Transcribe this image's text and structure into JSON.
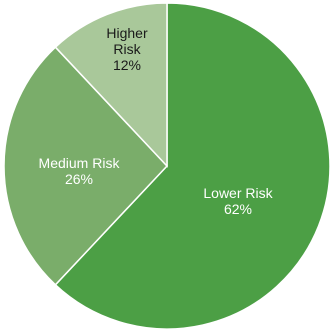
{
  "chart_data": {
    "type": "pie",
    "title": "",
    "slices": [
      {
        "label": [
          "Lower Risk"
        ],
        "value": 62,
        "value_label": "62%",
        "color": "#4c9f45",
        "text_color": "light"
      },
      {
        "label": [
          "Medium Risk"
        ],
        "value": 26,
        "value_label": "26%",
        "color": "#7aad6a",
        "text_color": "light"
      },
      {
        "label": [
          "Higher",
          "Risk"
        ],
        "value": 12,
        "value_label": "12%",
        "color": "#a9c89a",
        "text_color": "dark"
      }
    ],
    "start_direction": "top",
    "direction": "clockwise",
    "slice_border_color": "#ffffff",
    "legend": "none"
  }
}
